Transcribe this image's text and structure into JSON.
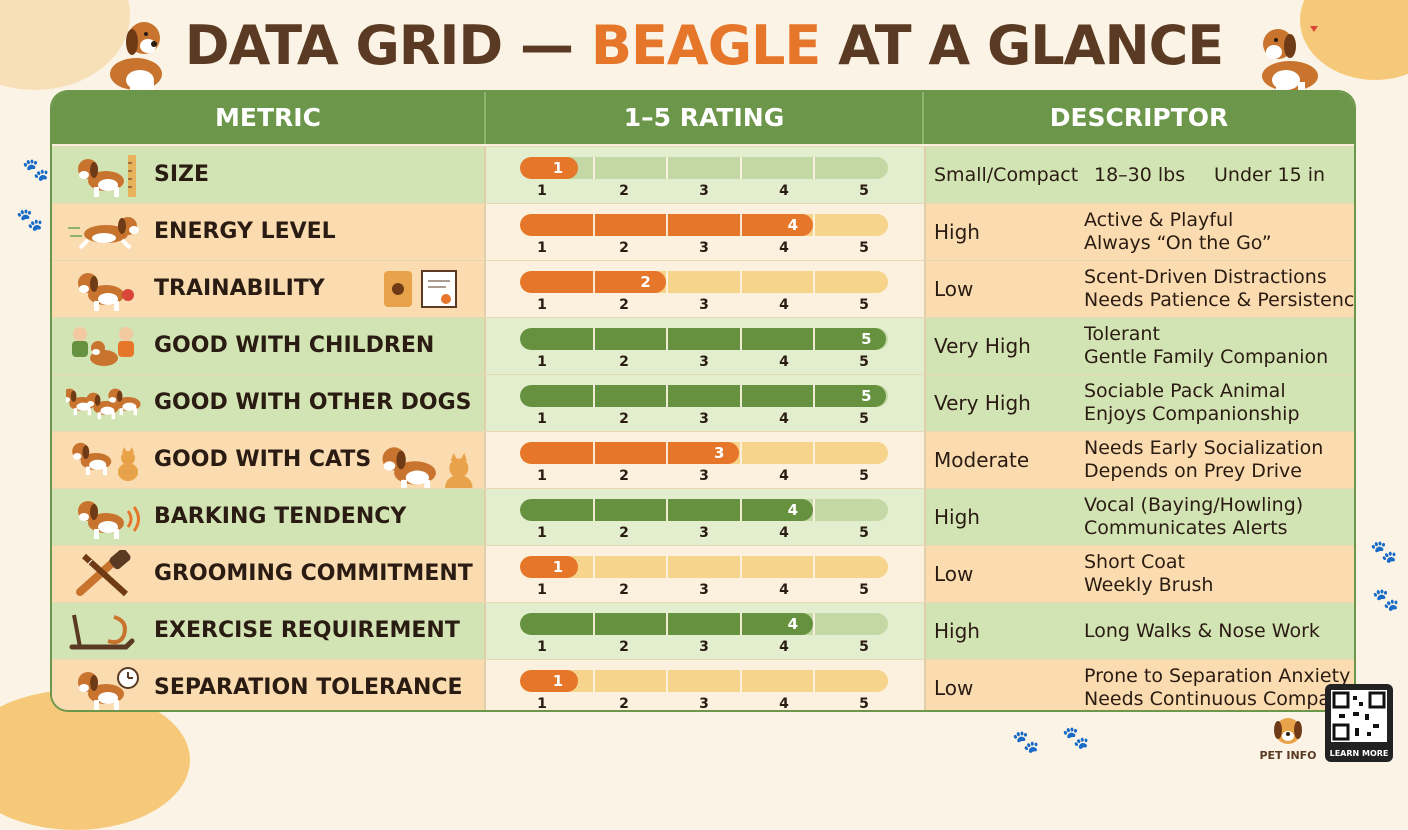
{
  "title": {
    "part1": "DATA GRID — ",
    "highlight": "BEAGLE",
    "part2": " AT A GLANCE"
  },
  "headers": {
    "metric": "METRIC",
    "rating": "1–5 RATING",
    "descriptor": "DESCRIPTOR"
  },
  "scale_ticks": [
    "1",
    "2",
    "3",
    "4",
    "5"
  ],
  "colors": {
    "orange": "#e5762a",
    "green": "#66913f",
    "header": "#6c964a",
    "title": "#5a3a22"
  },
  "rows": [
    {
      "name": "SIZE",
      "icon": "beagle-ruler-icon",
      "rating": 1,
      "rating_label": "1",
      "color": "orange",
      "track": "green",
      "level": "Small/Compact",
      "d1": "18–30 lbs",
      "d2": "Under 15 in"
    },
    {
      "name": "ENERGY LEVEL",
      "icon": "running-beagle-icon",
      "rating": 4,
      "rating_label": "4",
      "color": "orange",
      "track": "orange",
      "level": "High",
      "d1": "Active & Playful",
      "d2": "Always “On the Go”"
    },
    {
      "name": "TRAINABILITY",
      "icon": "beagle-with-toy-icon",
      "rating": 2,
      "rating_label": "2",
      "color": "orange",
      "track": "orange",
      "level": "Low",
      "d1": "Scent-Driven Distractions",
      "d2": "Needs Patience & Persistence"
    },
    {
      "name": "GOOD WITH CHILDREN",
      "icon": "children-with-beagle-icon",
      "rating": 5,
      "rating_label": "5",
      "color": "green",
      "track": "green",
      "level": "Very High",
      "d1": "Tolerant",
      "d2": "Gentle Family Companion"
    },
    {
      "name": "GOOD WITH OTHER DOGS",
      "icon": "beagle-pack-icon",
      "rating": 5,
      "rating_label": "5",
      "color": "green",
      "track": "green",
      "level": "Very High",
      "d1": "Sociable Pack Animal",
      "d2": "Enjoys Companionship"
    },
    {
      "name": "GOOD WITH CATS",
      "icon": "beagle-and-cat-icon",
      "rating": 3,
      "rating_label": "3",
      "color": "orange",
      "track": "orange",
      "level": "Moderate",
      "d1": "Needs Early Socialization",
      "d2": "Depends on Prey Drive"
    },
    {
      "name": "BARKING TENDENCY",
      "icon": "barking-beagle-icon",
      "rating": 4,
      "rating_label": "4",
      "color": "green",
      "track": "green",
      "level": "High",
      "d1": "Vocal (Baying/Howling)",
      "d2": "Communicates Alerts"
    },
    {
      "name": "GROOMING COMMITMENT",
      "icon": "brush-and-comb-icon",
      "rating": 1,
      "rating_label": "1",
      "color": "orange",
      "track": "orange",
      "level": "Low",
      "d1": "Short Coat",
      "d2": "Weekly Brush"
    },
    {
      "name": "EXERCISE REQUIREMENT",
      "icon": "treadmill-leash-icon",
      "rating": 4,
      "rating_label": "4",
      "color": "green",
      "track": "green",
      "level": "High",
      "d1": "Long Walks & Nose Work",
      "d2": ""
    },
    {
      "name": "SEPARATION TOLERANCE",
      "icon": "beagle-clock-icon",
      "rating": 1,
      "rating_label": "1",
      "color": "orange",
      "track": "orange",
      "level": "Low",
      "d1": "Prone to Separation Anxiety",
      "d2": "Needs Continuous Company"
    }
  ],
  "footer": {
    "brand": "PET INFO",
    "qr_label": "LEARN MORE"
  }
}
